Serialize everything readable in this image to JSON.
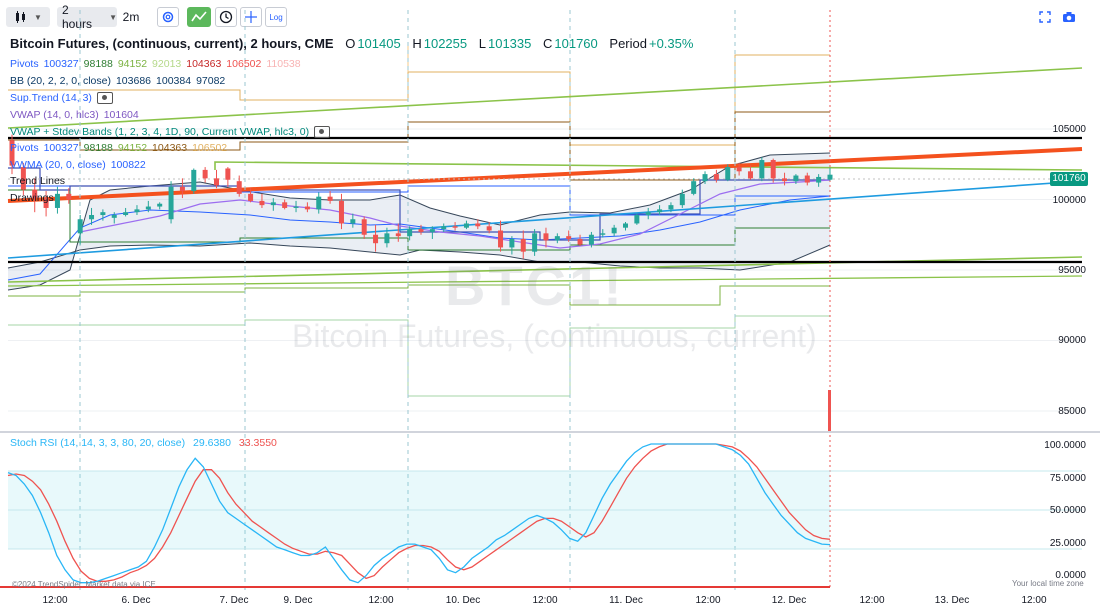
{
  "toolbar": {
    "interval": "2 hours",
    "interval2": "2m",
    "log_label": "Log"
  },
  "header": {
    "title": "Bitcoin Futures, (continuous, current), 2 hours, CME",
    "o_label": "O",
    "o": "101405",
    "h_label": "H",
    "h": "102255",
    "l_label": "L",
    "l": "101335",
    "c_label": "C",
    "c": "101760",
    "period_label": "Period",
    "period": "+0.35%"
  },
  "indicators": [
    {
      "name": "Pivots",
      "values": [
        "100327",
        "98188",
        "94152",
        "92013",
        "104363",
        "106502",
        "110538"
      ],
      "colors": [
        "#2962ff",
        "#2e7d32",
        "#7cb342",
        "#b5d98a",
        "#c62828",
        "#ef5350",
        "#f8b4b4"
      ],
      "name_color": "#2962ff",
      "eye": false
    },
    {
      "name": "BB (20, 2, 2, 0, close)",
      "values": [
        "103686",
        "100384",
        "97082"
      ],
      "colors": [
        "#0d3b66",
        "#0d3b66",
        "#0d3b66"
      ],
      "name_color": "#0d3b66",
      "eye": false
    },
    {
      "name": "Sup.Trend (14, 3)",
      "values": [],
      "colors": [],
      "name_color": "#2962ff",
      "eye": true
    },
    {
      "name": "VWAP (14, 0, hlc3)",
      "values": [
        "101604"
      ],
      "colors": [
        "#7e57c2"
      ],
      "name_color": "#7e57c2",
      "eye": false
    },
    {
      "name": "VWAP + Stdev Bands (1, 2, 3, 4, 1D, 90, Current VWAP, hlc3, 0)",
      "values": [],
      "colors": [],
      "name_color": "#00897b",
      "eye": true
    },
    {
      "name": "Pivots",
      "values": [
        "100327",
        "98188",
        "94152",
        "104363",
        "106502"
      ],
      "colors": [
        "#2962ff",
        "#2e7d32",
        "#7cb342",
        "#8d5a17",
        "#e0b060"
      ],
      "name_color": "#2962ff",
      "eye": false
    },
    {
      "name": "VWMA (20, 0, close)",
      "values": [
        "100822"
      ],
      "colors": [
        "#2962ff"
      ],
      "name_color": "#2962ff",
      "eye": false
    },
    {
      "name": "Trend Lines",
      "values": [],
      "colors": [],
      "name_color": "#131722",
      "eye": false
    },
    {
      "name": "Drawings",
      "values": [],
      "colors": [],
      "name_color": "#131722",
      "eye": false
    }
  ],
  "watermark": {
    "symbol": "BTC1!",
    "description": "Bitcoin Futures, (continuous, current)"
  },
  "price_axis": [
    "105000",
    "100000",
    "95000",
    "90000",
    "85000"
  ],
  "last_price": "101760",
  "rsi": {
    "legend": "Stoch RSI (14, 14, 3, 3, 80, 20, close)",
    "k": "29.6380",
    "d": "33.3550",
    "axis": [
      "100.0000",
      "75.0000",
      "50.0000",
      "25.0000",
      "0.0000"
    ]
  },
  "time_axis": [
    "12:00",
    "6. Dec",
    "7. Dec",
    "9. Dec",
    "12:00",
    "10. Dec",
    "12:00",
    "11. Dec",
    "12:00",
    "12. Dec",
    "12:00",
    "13. Dec",
    "12:00"
  ],
  "footer": {
    "copyright": "©2024 TrendSpider. Market data via ICE",
    "timezone": "Your local time zone"
  },
  "colors": {
    "up": "#26a69a",
    "down": "#ef5350",
    "accent": "#089981",
    "k_line": "#29b6f6",
    "d_line": "#ef5350"
  },
  "chart_data": {
    "type": "candlestick",
    "price_range": [
      82000,
      111000
    ],
    "candles": [
      {
        "o": 104200,
        "h": 104600,
        "l": 101800,
        "c": 102400
      },
      {
        "o": 102300,
        "h": 102600,
        "l": 100300,
        "c": 100700
      },
      {
        "o": 100700,
        "h": 101500,
        "l": 99100,
        "c": 100100
      },
      {
        "o": 100100,
        "h": 100600,
        "l": 98800,
        "c": 99400
      },
      {
        "o": 99400,
        "h": 100900,
        "l": 99000,
        "c": 100400
      },
      {
        "o": 100400,
        "h": 100800,
        "l": 99700,
        "c": 100000
      },
      {
        "o": 97600,
        "h": 98900,
        "l": 96800,
        "c": 98600
      },
      {
        "o": 98600,
        "h": 99400,
        "l": 98200,
        "c": 98900
      },
      {
        "o": 98900,
        "h": 99300,
        "l": 98500,
        "c": 99100
      },
      {
        "o": 98700,
        "h": 99100,
        "l": 98300,
        "c": 98900
      },
      {
        "o": 98900,
        "h": 99400,
        "l": 98800,
        "c": 99100
      },
      {
        "o": 99100,
        "h": 99600,
        "l": 98900,
        "c": 99300
      },
      {
        "o": 99300,
        "h": 99900,
        "l": 99100,
        "c": 99500
      },
      {
        "o": 99500,
        "h": 99800,
        "l": 99300,
        "c": 99700
      },
      {
        "o": 98600,
        "h": 101300,
        "l": 98300,
        "c": 100900
      },
      {
        "o": 100900,
        "h": 101500,
        "l": 100100,
        "c": 100600
      },
      {
        "o": 100600,
        "h": 102200,
        "l": 100400,
        "c": 102100
      },
      {
        "o": 102100,
        "h": 102300,
        "l": 101200,
        "c": 101500
      },
      {
        "o": 101500,
        "h": 102100,
        "l": 100800,
        "c": 101000
      },
      {
        "o": 102200,
        "h": 102300,
        "l": 100900,
        "c": 101400
      },
      {
        "o": 101300,
        "h": 101700,
        "l": 100200,
        "c": 100400
      },
      {
        "o": 100400,
        "h": 100800,
        "l": 99800,
        "c": 99900
      },
      {
        "o": 99900,
        "h": 100400,
        "l": 99400,
        "c": 99600
      },
      {
        "o": 99600,
        "h": 100100,
        "l": 99200,
        "c": 99800
      },
      {
        "o": 99800,
        "h": 100000,
        "l": 99300,
        "c": 99400
      },
      {
        "o": 99400,
        "h": 99900,
        "l": 99100,
        "c": 99500
      },
      {
        "o": 99500,
        "h": 99800,
        "l": 99100,
        "c": 99300
      },
      {
        "o": 99300,
        "h": 100500,
        "l": 99000,
        "c": 100200
      },
      {
        "o": 100200,
        "h": 100600,
        "l": 99700,
        "c": 99900
      },
      {
        "o": 99900,
        "h": 100400,
        "l": 97900,
        "c": 98300
      },
      {
        "o": 98300,
        "h": 99000,
        "l": 98000,
        "c": 98600
      },
      {
        "o": 98600,
        "h": 98800,
        "l": 97200,
        "c": 97500
      },
      {
        "o": 97500,
        "h": 98200,
        "l": 96300,
        "c": 96900
      },
      {
        "o": 96900,
        "h": 98000,
        "l": 96600,
        "c": 97600
      },
      {
        "o": 97600,
        "h": 98300,
        "l": 97000,
        "c": 97400
      },
      {
        "o": 97400,
        "h": 98100,
        "l": 97100,
        "c": 97900
      },
      {
        "o": 97900,
        "h": 98200,
        "l": 97500,
        "c": 97700
      },
      {
        "o": 97700,
        "h": 98100,
        "l": 97200,
        "c": 97900
      },
      {
        "o": 97900,
        "h": 98300,
        "l": 97700,
        "c": 98100
      },
      {
        "o": 98100,
        "h": 98400,
        "l": 97800,
        "c": 98000
      },
      {
        "o": 98000,
        "h": 98500,
        "l": 97900,
        "c": 98300
      },
      {
        "o": 98300,
        "h": 98600,
        "l": 97900,
        "c": 98100
      },
      {
        "o": 98100,
        "h": 98400,
        "l": 97600,
        "c": 97800
      },
      {
        "o": 97800,
        "h": 98500,
        "l": 96300,
        "c": 96600
      },
      {
        "o": 96600,
        "h": 97400,
        "l": 96100,
        "c": 97200
      },
      {
        "o": 97200,
        "h": 97800,
        "l": 95800,
        "c": 96300
      },
      {
        "o": 96300,
        "h": 97900,
        "l": 96000,
        "c": 97600
      },
      {
        "o": 97600,
        "h": 98000,
        "l": 96600,
        "c": 97100
      },
      {
        "o": 97100,
        "h": 97600,
        "l": 96900,
        "c": 97400
      },
      {
        "o": 97400,
        "h": 97800,
        "l": 97000,
        "c": 97200
      },
      {
        "o": 97200,
        "h": 97500,
        "l": 96700,
        "c": 96800
      },
      {
        "o": 96800,
        "h": 97700,
        "l": 96600,
        "c": 97500
      },
      {
        "o": 97500,
        "h": 97900,
        "l": 97300,
        "c": 97600
      },
      {
        "o": 97600,
        "h": 98200,
        "l": 97400,
        "c": 98000
      },
      {
        "o": 98000,
        "h": 98400,
        "l": 97800,
        "c": 98300
      },
      {
        "o": 98300,
        "h": 99000,
        "l": 98200,
        "c": 98900
      },
      {
        "o": 98900,
        "h": 99400,
        "l": 98600,
        "c": 99100
      },
      {
        "o": 99100,
        "h": 99600,
        "l": 98900,
        "c": 99300
      },
      {
        "o": 99300,
        "h": 99800,
        "l": 99100,
        "c": 99600
      },
      {
        "o": 99600,
        "h": 100700,
        "l": 99400,
        "c": 100400
      },
      {
        "o": 100400,
        "h": 101500,
        "l": 100300,
        "c": 101300
      },
      {
        "o": 101300,
        "h": 102000,
        "l": 101100,
        "c": 101800
      },
      {
        "o": 101800,
        "h": 102100,
        "l": 101200,
        "c": 101400
      },
      {
        "o": 101400,
        "h": 102500,
        "l": 101300,
        "c": 102300
      },
      {
        "o": 102300,
        "h": 102600,
        "l": 101700,
        "c": 102000
      },
      {
        "o": 102000,
        "h": 102400,
        "l": 101400,
        "c": 101500
      },
      {
        "o": 101500,
        "h": 103000,
        "l": 101300,
        "c": 102800
      },
      {
        "o": 102800,
        "h": 102900,
        "l": 101200,
        "c": 101500
      },
      {
        "o": 101500,
        "h": 101900,
        "l": 101000,
        "c": 101300
      },
      {
        "o": 101300,
        "h": 101800,
        "l": 101100,
        "c": 101700
      },
      {
        "o": 101700,
        "h": 101900,
        "l": 101000,
        "c": 101200
      },
      {
        "o": 101200,
        "h": 101800,
        "l": 100900,
        "c": 101600
      },
      {
        "o": 101405,
        "h": 102255,
        "l": 101335,
        "c": 101760
      }
    ],
    "horizontal_levels": [
      104400,
      95500
    ],
    "stoch_k": [
      80,
      78,
      72,
      64,
      52,
      38,
      22,
      12,
      5,
      3,
      3,
      4,
      6,
      8,
      10,
      12,
      14,
      18,
      28,
      40,
      55,
      70,
      82,
      90,
      84,
      72,
      60,
      52,
      48,
      44,
      40,
      36,
      32,
      28,
      26,
      24,
      22,
      22,
      24,
      28,
      20,
      12,
      5,
      3,
      8,
      15,
      20,
      24,
      28,
      30,
      30,
      28,
      26,
      20,
      12,
      10,
      14,
      20,
      24,
      28,
      33,
      36,
      40,
      44,
      48,
      50,
      48,
      45,
      40,
      34,
      32,
      38,
      50,
      62,
      72,
      80,
      88,
      94,
      98,
      100,
      100,
      100,
      100,
      100,
      100,
      100,
      100,
      100,
      98,
      96,
      92,
      86,
      76,
      66,
      58,
      50,
      44,
      38,
      34,
      32,
      30,
      29.638
    ],
    "stoch_d": [
      78,
      79,
      78,
      74,
      68,
      58,
      46,
      32,
      20,
      11,
      6,
      4,
      4,
      5,
      7,
      10,
      12,
      15,
      20,
      28,
      38,
      50,
      62,
      74,
      82,
      82,
      76,
      66,
      58,
      52,
      46,
      42,
      38,
      34,
      30,
      27,
      25,
      23,
      23,
      25,
      24,
      22,
      16,
      10,
      6,
      8,
      14,
      19,
      24,
      27,
      29,
      29,
      28,
      25,
      19,
      14,
      12,
      14,
      18,
      22,
      26,
      30,
      34,
      38,
      42,
      46,
      48,
      48,
      46,
      42,
      38,
      35,
      38,
      46,
      56,
      66,
      76,
      84,
      90,
      95,
      98,
      100,
      100,
      100,
      100,
      100,
      100,
      100,
      99,
      98,
      95,
      90,
      84,
      76,
      68,
      60,
      52,
      46,
      40,
      36,
      34,
      33.355
    ]
  }
}
